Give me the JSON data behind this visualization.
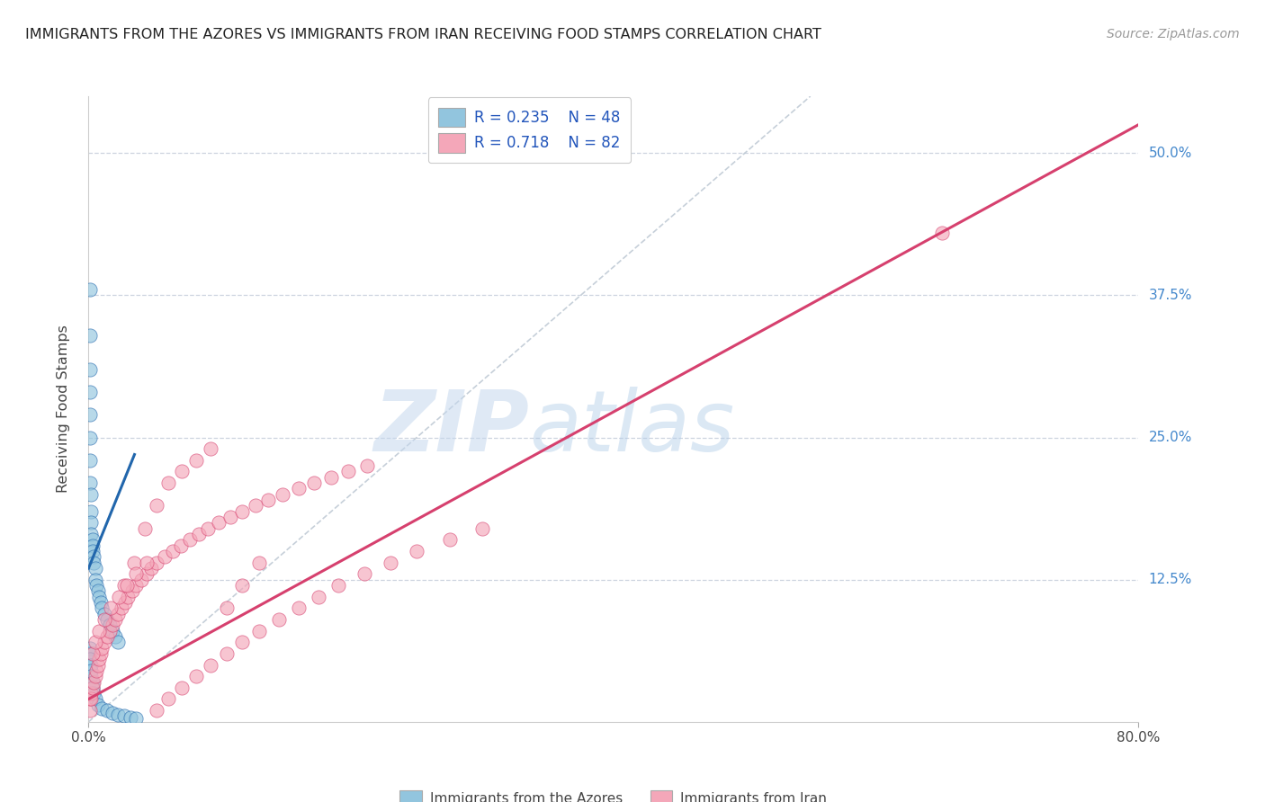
{
  "title": "IMMIGRANTS FROM THE AZORES VS IMMIGRANTS FROM IRAN RECEIVING FOOD STAMPS CORRELATION CHART",
  "source": "Source: ZipAtlas.com",
  "xlabel_azores": "Immigrants from the Azores",
  "xlabel_iran": "Immigrants from Iran",
  "ylabel": "Receiving Food Stamps",
  "xlim": [
    0.0,
    0.8
  ],
  "ylim": [
    0.0,
    0.55
  ],
  "xticks": [
    0.0,
    0.8
  ],
  "xtick_labels": [
    "0.0%",
    "80.0%"
  ],
  "yticks": [
    0.125,
    0.25,
    0.375,
    0.5
  ],
  "ytick_labels": [
    "12.5%",
    "25.0%",
    "37.5%",
    "50.0%"
  ],
  "legend_r_azores": "R = 0.235",
  "legend_n_azores": "N = 48",
  "legend_r_iran": "R = 0.718",
  "legend_n_iran": "N = 82",
  "color_azores": "#92c5de",
  "color_iran": "#f4a7b9",
  "color_azores_line": "#2166ac",
  "color_iran_line": "#d6406e",
  "color_diag": "#b8c4d0",
  "watermark_zip_color": "#c5d8ee",
  "watermark_atlas_color": "#b0cce8",
  "az_line_x0": 0.0,
  "az_line_y0": 0.135,
  "az_line_x1": 0.035,
  "az_line_y1": 0.235,
  "ir_line_x0": 0.0,
  "ir_line_y0": 0.02,
  "ir_line_x1": 0.8,
  "ir_line_y1": 0.525,
  "azores_x": [
    0.001,
    0.001,
    0.001,
    0.001,
    0.001,
    0.001,
    0.001,
    0.001,
    0.002,
    0.002,
    0.002,
    0.002,
    0.003,
    0.003,
    0.003,
    0.004,
    0.004,
    0.005,
    0.005,
    0.006,
    0.007,
    0.008,
    0.009,
    0.01,
    0.012,
    0.014,
    0.016,
    0.018,
    0.02,
    0.022,
    0.001,
    0.001,
    0.001,
    0.002,
    0.002,
    0.002,
    0.003,
    0.003,
    0.004,
    0.005,
    0.007,
    0.01,
    0.014,
    0.018,
    0.022,
    0.027,
    0.032,
    0.036
  ],
  "azores_y": [
    0.38,
    0.34,
    0.31,
    0.29,
    0.27,
    0.25,
    0.23,
    0.21,
    0.2,
    0.185,
    0.175,
    0.165,
    0.16,
    0.155,
    0.15,
    0.145,
    0.14,
    0.135,
    0.125,
    0.12,
    0.115,
    0.11,
    0.105,
    0.1,
    0.095,
    0.09,
    0.085,
    0.08,
    0.075,
    0.07,
    0.065,
    0.06,
    0.055,
    0.05,
    0.045,
    0.04,
    0.035,
    0.03,
    0.025,
    0.02,
    0.015,
    0.012,
    0.01,
    0.008,
    0.006,
    0.005,
    0.004,
    0.003
  ],
  "iran_x": [
    0.001,
    0.001,
    0.002,
    0.002,
    0.003,
    0.004,
    0.005,
    0.006,
    0.007,
    0.008,
    0.009,
    0.01,
    0.012,
    0.014,
    0.016,
    0.018,
    0.02,
    0.022,
    0.025,
    0.028,
    0.03,
    0.033,
    0.036,
    0.04,
    0.044,
    0.048,
    0.052,
    0.058,
    0.064,
    0.07,
    0.077,
    0.084,
    0.091,
    0.099,
    0.108,
    0.117,
    0.127,
    0.137,
    0.148,
    0.16,
    0.172,
    0.185,
    0.198,
    0.212,
    0.027,
    0.035,
    0.043,
    0.052,
    0.061,
    0.071,
    0.082,
    0.093,
    0.105,
    0.117,
    0.13,
    0.003,
    0.005,
    0.008,
    0.012,
    0.017,
    0.023,
    0.029,
    0.036,
    0.044,
    0.052,
    0.061,
    0.071,
    0.082,
    0.093,
    0.105,
    0.117,
    0.13,
    0.145,
    0.16,
    0.175,
    0.19,
    0.21,
    0.23,
    0.25,
    0.275,
    0.3,
    0.65
  ],
  "iran_y": [
    0.01,
    0.02,
    0.025,
    0.02,
    0.03,
    0.035,
    0.04,
    0.045,
    0.05,
    0.055,
    0.06,
    0.065,
    0.07,
    0.075,
    0.08,
    0.085,
    0.09,
    0.095,
    0.1,
    0.105,
    0.11,
    0.115,
    0.12,
    0.125,
    0.13,
    0.135,
    0.14,
    0.145,
    0.15,
    0.155,
    0.16,
    0.165,
    0.17,
    0.175,
    0.18,
    0.185,
    0.19,
    0.195,
    0.2,
    0.205,
    0.21,
    0.215,
    0.22,
    0.225,
    0.12,
    0.14,
    0.17,
    0.19,
    0.21,
    0.22,
    0.23,
    0.24,
    0.1,
    0.12,
    0.14,
    0.06,
    0.07,
    0.08,
    0.09,
    0.1,
    0.11,
    0.12,
    0.13,
    0.14,
    0.01,
    0.02,
    0.03,
    0.04,
    0.05,
    0.06,
    0.07,
    0.08,
    0.09,
    0.1,
    0.11,
    0.12,
    0.13,
    0.14,
    0.15,
    0.16,
    0.17,
    0.43
  ]
}
